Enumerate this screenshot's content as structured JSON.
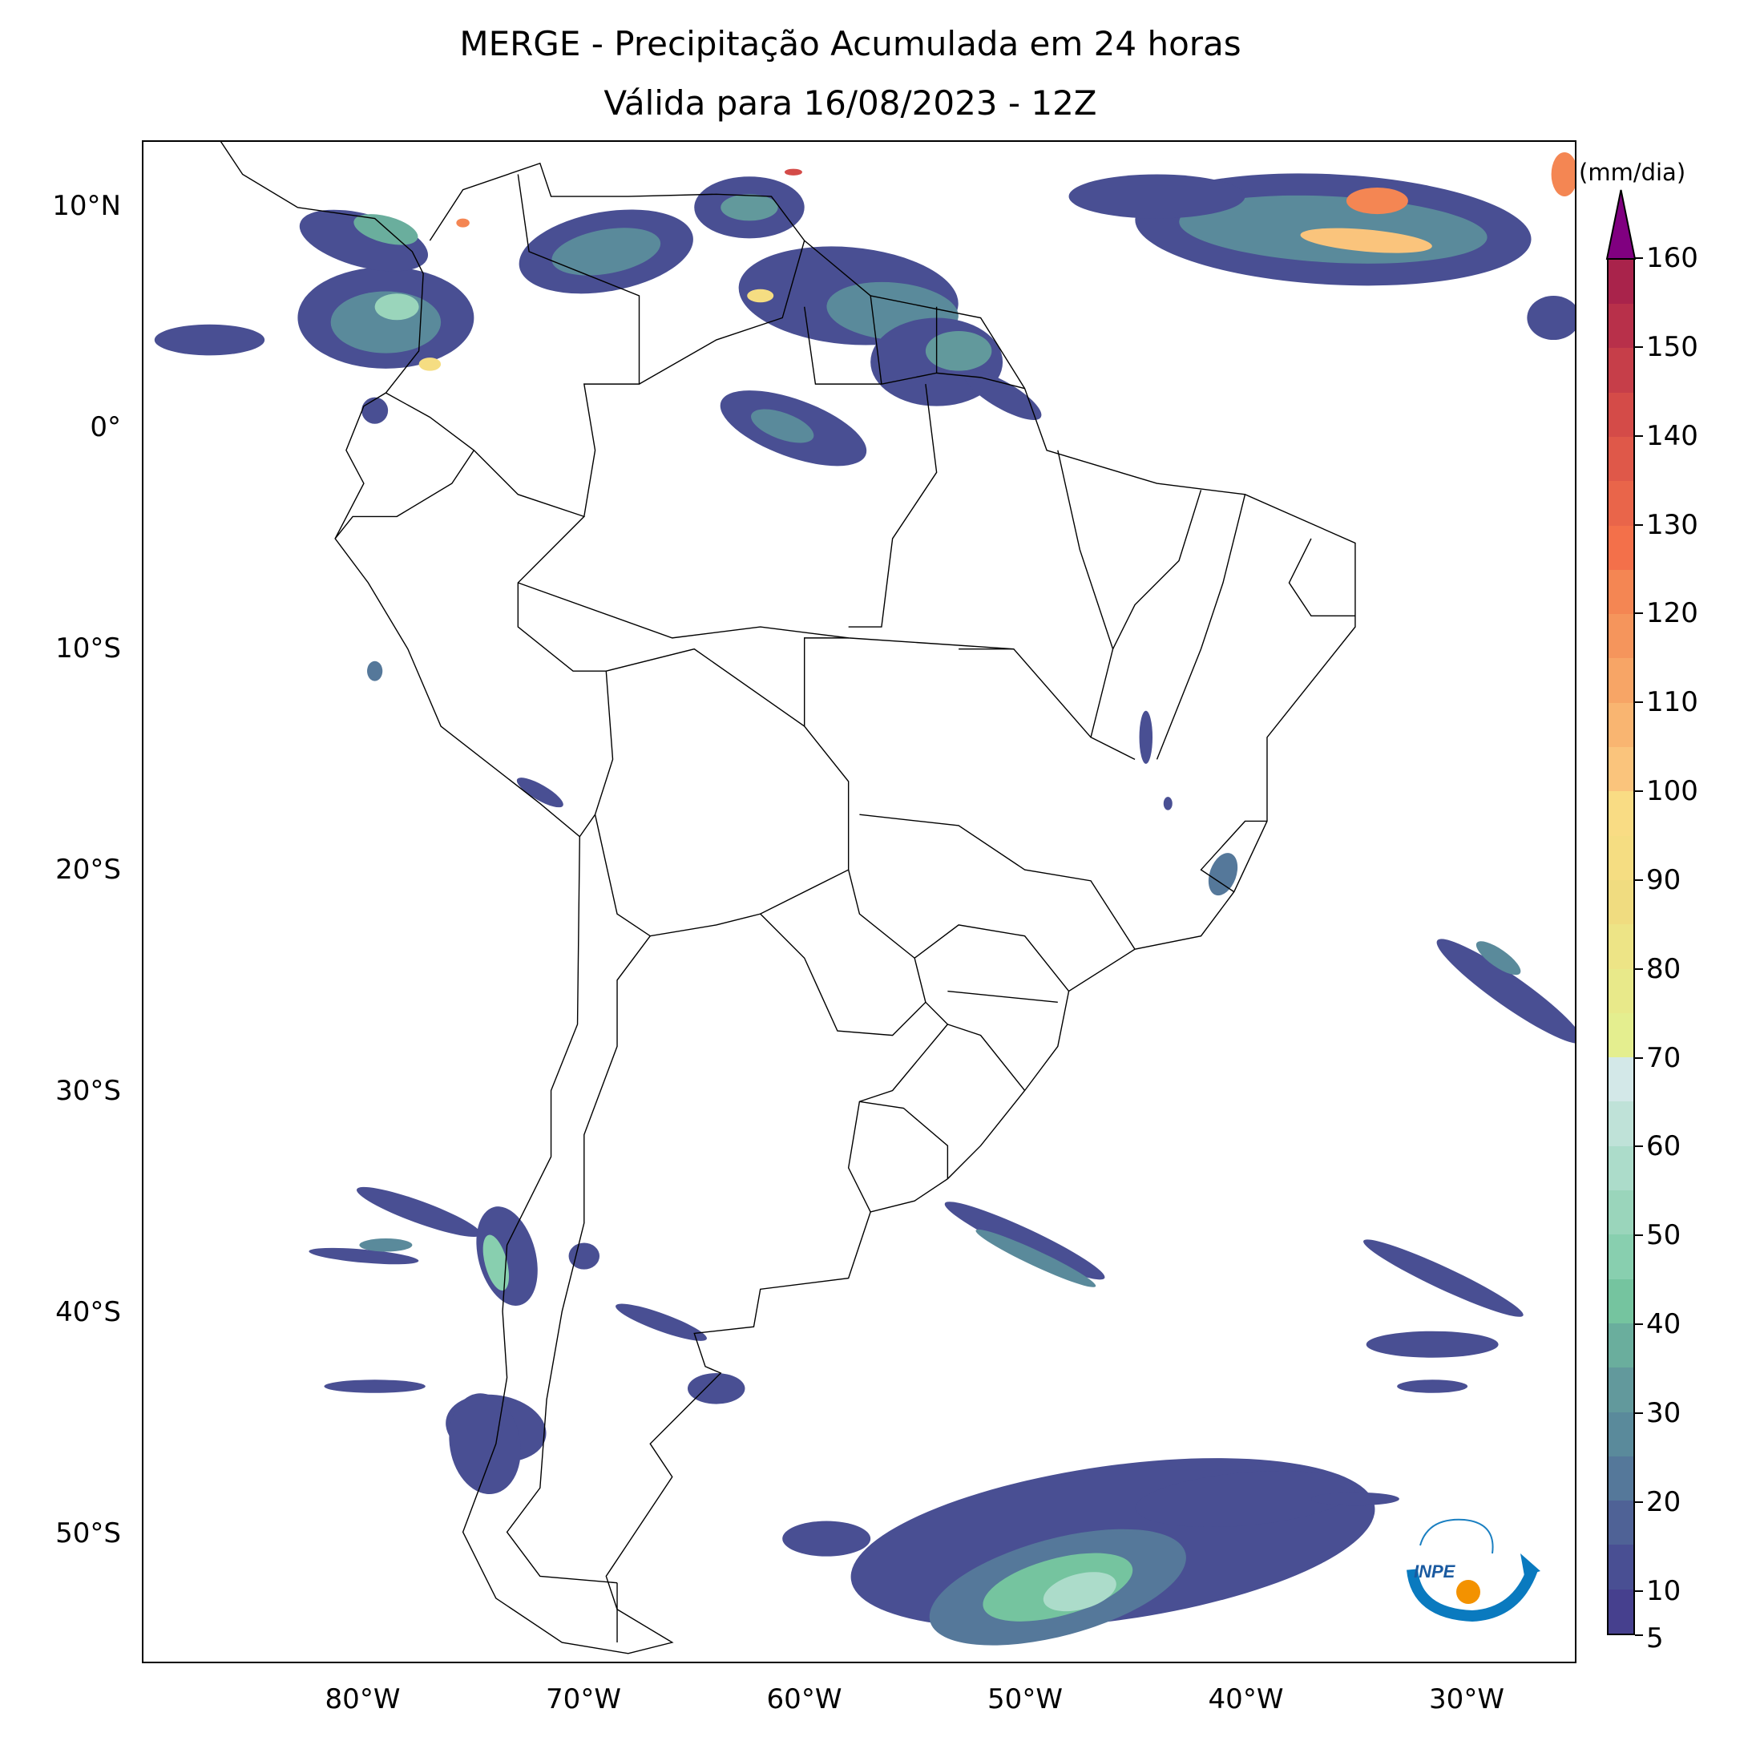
{
  "title": {
    "line1": "MERGE - Precipitação Acumulada em 24 horas",
    "line2": "Válida para 16/08/2023 - 12Z"
  },
  "axes": {
    "lat_labels": [
      {
        "lat": 10,
        "label": "10°N"
      },
      {
        "lat": 0,
        "label": "0°"
      },
      {
        "lat": -10,
        "label": "10°S"
      },
      {
        "lat": -20,
        "label": "20°S"
      },
      {
        "lat": -30,
        "label": "30°S"
      },
      {
        "lat": -40,
        "label": "40°S"
      },
      {
        "lat": -50,
        "label": "50°S"
      }
    ],
    "lon_labels": [
      {
        "lon": -80,
        "label": "80°W"
      },
      {
        "lon": -70,
        "label": "70°W"
      },
      {
        "lon": -60,
        "label": "60°W"
      },
      {
        "lon": -50,
        "label": "50°W"
      },
      {
        "lon": -40,
        "label": "40°W"
      },
      {
        "lon": -30,
        "label": "30°W"
      }
    ],
    "lon_range": [
      -90,
      -25
    ],
    "lat_range": [
      -55.9,
      12.97
    ]
  },
  "colorbar": {
    "unit": "(mm/dia)",
    "min": 5,
    "max": 160,
    "extend": "max",
    "over_color": "#800080",
    "ticks": [
      "5",
      "10",
      "20",
      "30",
      "40",
      "50",
      "60",
      "70",
      "80",
      "90",
      "100",
      "110",
      "120",
      "130",
      "140",
      "150",
      "160"
    ],
    "colors": [
      "#46408e",
      "#494f93",
      "#4f6296",
      "#55789a",
      "#5a8a9b",
      "#62999c",
      "#6aae9d",
      "#75c49f",
      "#88cfaf",
      "#9ad5bb",
      "#acdcca",
      "#bfe2d8",
      "#d3e8e8",
      "#e4ee8f",
      "#e8e98a",
      "#ede486",
      "#f0dc80",
      "#f5dd82",
      "#f9dc84",
      "#fac47c",
      "#f9b571",
      "#f7a566",
      "#f5955c",
      "#f48653",
      "#f3704a",
      "#e9654a",
      "#df5849",
      "#d44b48",
      "#c63e49",
      "#b8304a",
      "#a9234b"
    ]
  },
  "logo": {
    "text": "INPE"
  }
}
